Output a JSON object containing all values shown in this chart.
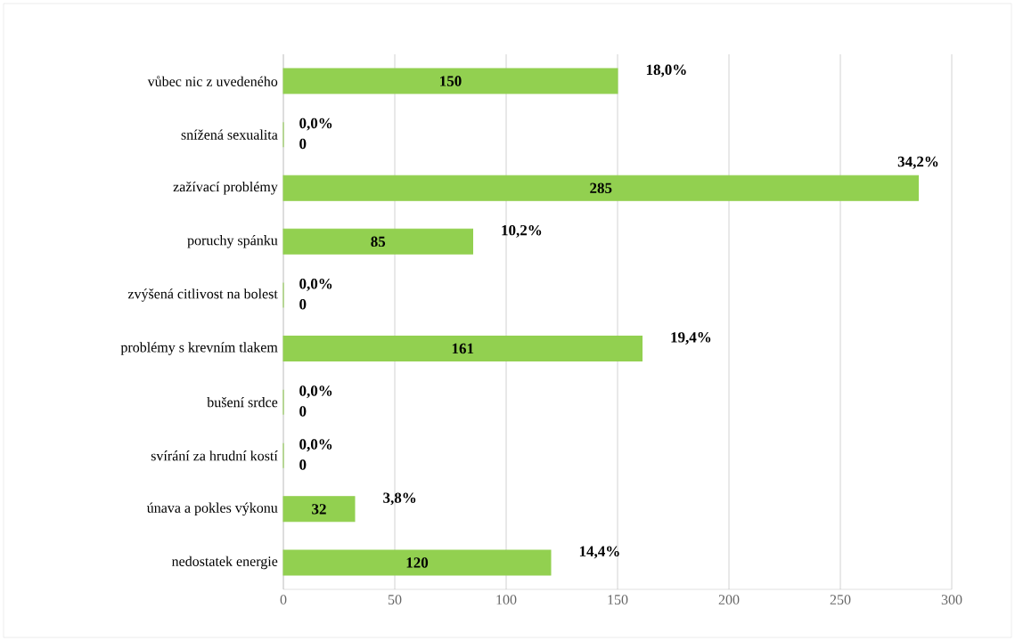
{
  "chart_data": {
    "type": "bar",
    "orientation": "horizontal",
    "categories": [
      "vůbec nic z uvedeného",
      "snížená sexualita",
      "zažívací problémy",
      "poruchy spánku",
      "zvýšená citlivost na bolest",
      "problémy s krevním tlakem",
      "bušení srdce",
      "svírání za hrudní kostí",
      "únava a pokles výkonu",
      "nedostatek energie"
    ],
    "values": [
      150,
      0,
      285,
      85,
      0,
      161,
      0,
      0,
      32,
      120
    ],
    "color": "#92d050",
    "xlim": [
      0,
      300
    ],
    "xticks": [
      0,
      50,
      100,
      150,
      200,
      250,
      300
    ],
    "grid": "x",
    "data_labels": true,
    "annotations": [
      {
        "text": "18,0%",
        "x": 150,
        "y": "vůbec nic z uvedeného"
      },
      {
        "text": "0,0%",
        "x": 0,
        "y": "snížená sexualita"
      },
      {
        "text": "34,2%",
        "x": 285,
        "y": "zažívací problémy"
      },
      {
        "text": "10,2%",
        "x": 85,
        "y": "poruchy spánku"
      },
      {
        "text": "0,0%",
        "x": 0,
        "y": "zvýšená citlivost na bolest"
      },
      {
        "text": "19,4%",
        "x": 161,
        "y": "problémy s krevním tlakem"
      },
      {
        "text": "0,0%",
        "x": 0,
        "y": "bušení srdce"
      },
      {
        "text": "0,0%",
        "x": 0,
        "y": "svírání za hrudní kostí"
      },
      {
        "text": "3,8%",
        "x": 32,
        "y": "únava a pokles výkonu"
      },
      {
        "text": "14,4%",
        "x": 120,
        "y": "nedostatek energie"
      }
    ]
  }
}
